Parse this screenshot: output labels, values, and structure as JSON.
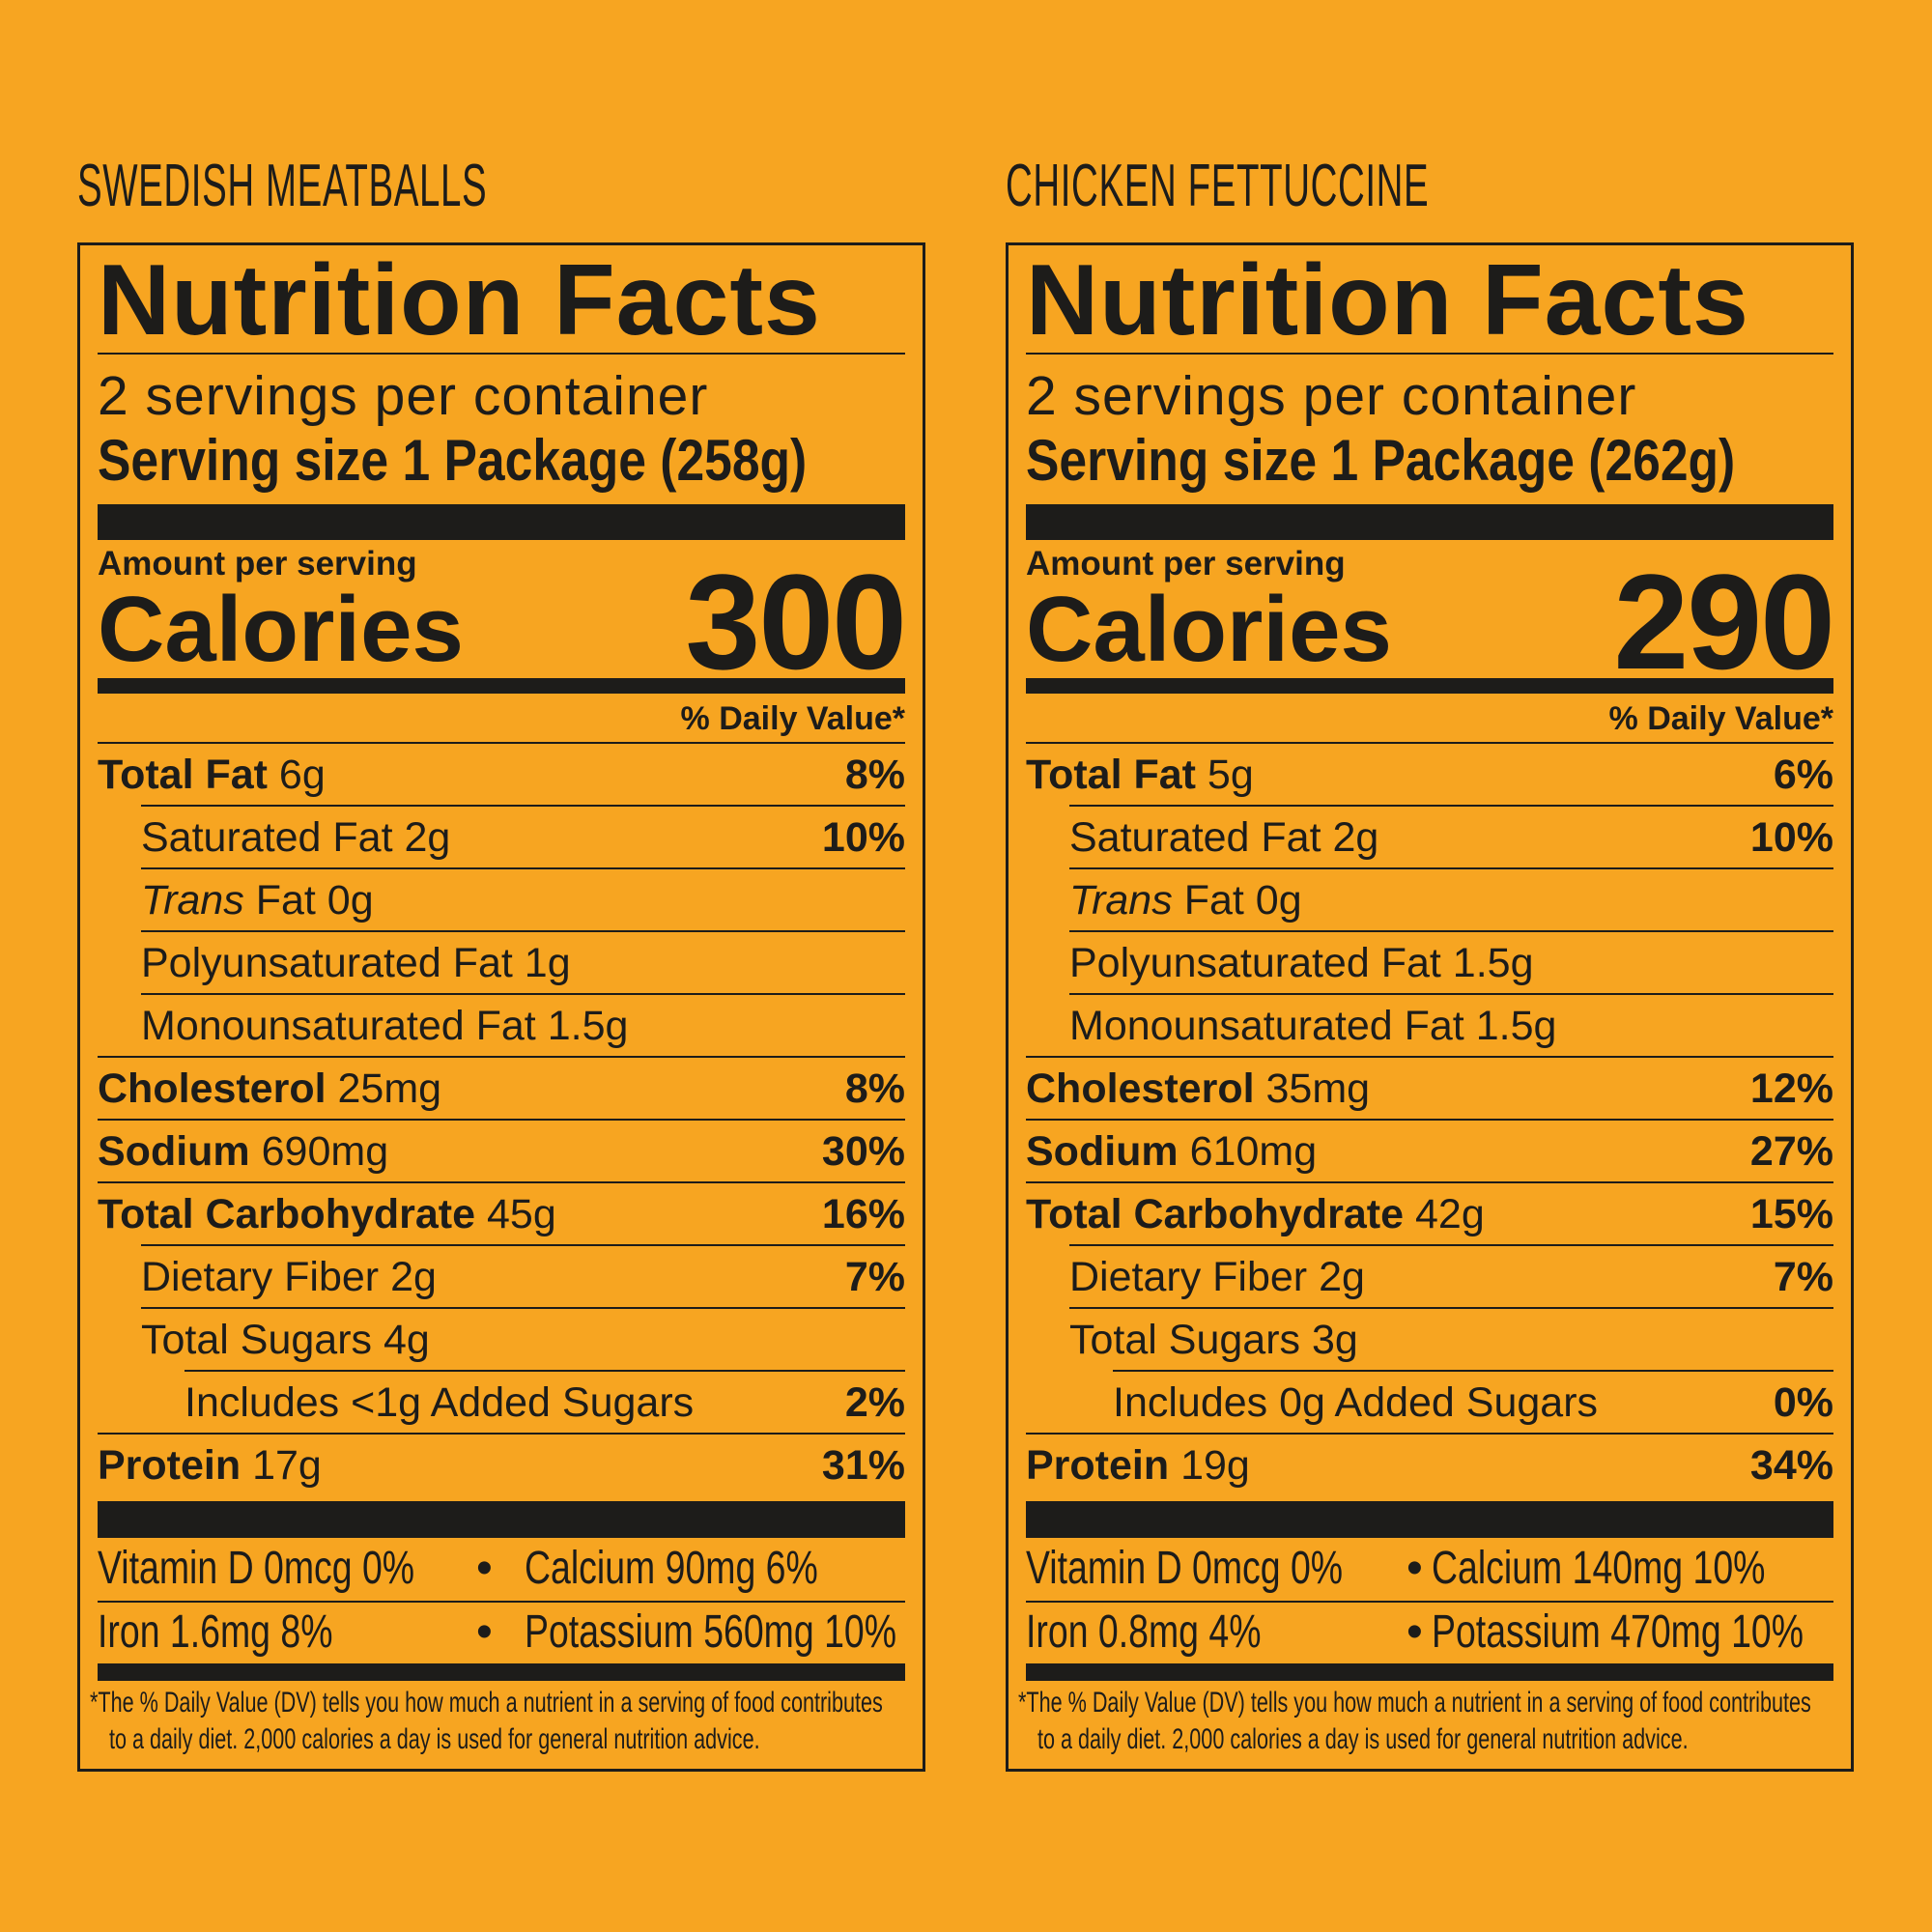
{
  "panels": [
    {
      "product": "SWEDISH MEATBALLS",
      "title": "Nutrition Facts",
      "servings": "2 servings per container",
      "serving_size": "Serving size 1 Package (258g)",
      "amount_label": "Amount per serving",
      "calories_label": "Calories",
      "calories": "300",
      "dv_header": "% Daily Value*",
      "rows": [
        {
          "name": "Total Fat",
          "amount": "6g",
          "dv": "8%",
          "level": 0
        },
        {
          "name": "Saturated Fat",
          "amount": "2g",
          "dv": "10%",
          "level": 1
        },
        {
          "italic": "Trans",
          "name": "Fat",
          "amount": "0g",
          "dv": "",
          "level": 1
        },
        {
          "name": "Polyunsaturated Fat",
          "amount": "1g",
          "dv": "",
          "level": 1
        },
        {
          "name": "Monounsaturated Fat",
          "amount": "1.5g",
          "dv": "",
          "level": 1
        },
        {
          "name": "Cholesterol",
          "amount": "25mg",
          "dv": "8%",
          "level": 0
        },
        {
          "name": "Sodium",
          "amount": "690mg",
          "dv": "30%",
          "level": 0
        },
        {
          "name": "Total Carbohydrate",
          "amount": "45g",
          "dv": "16%",
          "level": 0
        },
        {
          "name": "Dietary Fiber",
          "amount": "2g",
          "dv": "7%",
          "level": 1
        },
        {
          "name": "Total Sugars",
          "amount": "4g",
          "dv": "",
          "level": 1
        },
        {
          "name": "Includes <1g Added Sugars",
          "amount": "",
          "dv": "2%",
          "level": 2
        },
        {
          "name": "Protein",
          "amount": "17g",
          "dv": "31%",
          "level": 0
        }
      ],
      "vitamins": [
        [
          "Vitamin D 0mcg 0%",
          "•",
          "Calcium 90mg 6%"
        ],
        [
          "Iron 1.6mg 8%",
          "•",
          "Potassium 560mg 10%"
        ]
      ],
      "footnote": [
        "*The % Daily Value (DV) tells you how much a nutrient in a serving of food contributes",
        "to a daily diet. 2,000 calories a day is used for general nutrition advice."
      ]
    },
    {
      "product": "CHICKEN FETTUCCINE",
      "title": "Nutrition Facts",
      "servings": "2 servings per container",
      "serving_size": "Serving size 1 Package (262g)",
      "amount_label": "Amount per serving",
      "calories_label": "Calories",
      "calories": "290",
      "dv_header": "% Daily Value*",
      "rows": [
        {
          "name": "Total Fat",
          "amount": "5g",
          "dv": "6%",
          "level": 0
        },
        {
          "name": "Saturated Fat",
          "amount": "2g",
          "dv": "10%",
          "level": 1
        },
        {
          "italic": "Trans",
          "name": "Fat",
          "amount": "0g",
          "dv": "",
          "level": 1
        },
        {
          "name": "Polyunsaturated Fat",
          "amount": "1.5g",
          "dv": "",
          "level": 1
        },
        {
          "name": "Monounsaturated Fat",
          "amount": "1.5g",
          "dv": "",
          "level": 1
        },
        {
          "name": "Cholesterol",
          "amount": "35mg",
          "dv": "12%",
          "level": 0
        },
        {
          "name": "Sodium",
          "amount": "610mg",
          "dv": "27%",
          "level": 0
        },
        {
          "name": "Total Carbohydrate",
          "amount": "42g",
          "dv": "15%",
          "level": 0
        },
        {
          "name": "Dietary Fiber",
          "amount": "2g",
          "dv": "7%",
          "level": 1
        },
        {
          "name": "Total Sugars",
          "amount": "3g",
          "dv": "",
          "level": 1
        },
        {
          "name": "Includes 0g Added Sugars",
          "amount": "",
          "dv": "0%",
          "level": 2
        },
        {
          "name": "Protein",
          "amount": "19g",
          "dv": "34%",
          "level": 0
        }
      ],
      "vitamins": [
        [
          "Vitamin D 0mcg 0%",
          "•",
          "Calcium 140mg 10%"
        ],
        [
          "Iron 0.8mg 4%",
          "•",
          "Potassium 470mg 10%"
        ]
      ],
      "footnote": [
        "*The % Daily Value (DV) tells you how much a nutrient in a serving of food contributes",
        "to a daily diet. 2,000 calories a day is used for general nutrition advice."
      ]
    }
  ],
  "colors": {
    "background": "#F7A521",
    "ink": "#1d1c1a"
  }
}
